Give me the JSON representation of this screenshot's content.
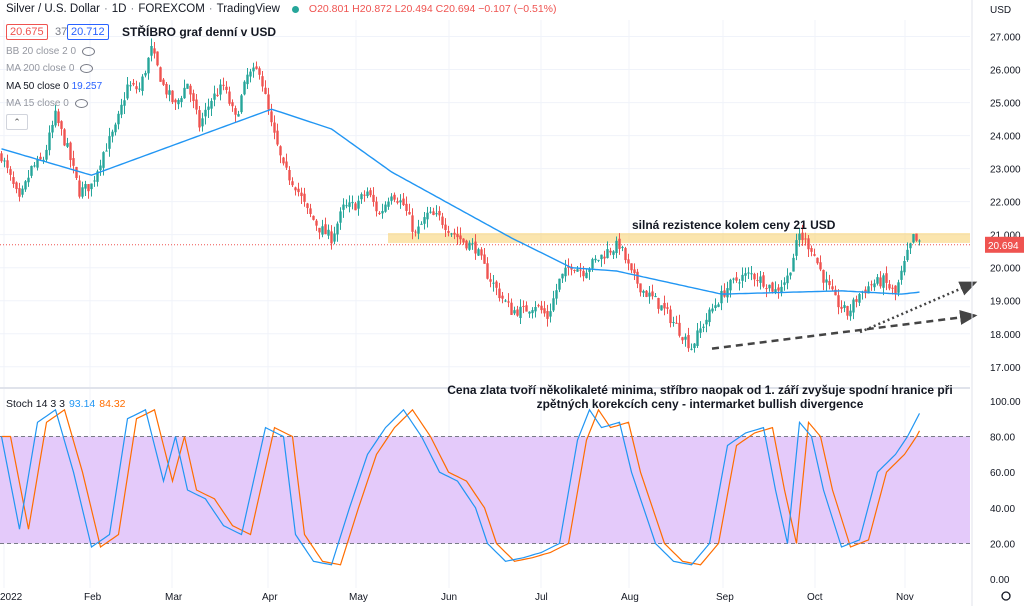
{
  "header": {
    "symbol": "Silver / U.S. Dollar",
    "interval": "1D",
    "exchange": "FOREXCOM",
    "provider": "TradingView",
    "ohlc": {
      "open": "O20.801",
      "high": "H20.872",
      "low": "L20.494",
      "close": "C20.694",
      "change": "−0.107 (−0.51%)"
    },
    "bid": "20.675",
    "spread": "37",
    "ask": "20.712",
    "currency": "USD"
  },
  "indicators": [
    {
      "label": "BB 20 close 2 0",
      "value": ""
    },
    {
      "label": "MA 200 close 0",
      "value": ""
    },
    {
      "label": "MA 50 close 0",
      "value": "19.257"
    },
    {
      "label": "MA 15 close 0",
      "value": ""
    }
  ],
  "annotations": {
    "title": "STŘÍBRO graf denní v USD",
    "resistance": "silná rezistence kolem ceny 21 USD",
    "comment": "Cena zlata tvoří několikaleté minima, stříbro naopak od 1. září zvyšuje spodní hranice při zpětných korekcích ceny - intermarket bullish divergence"
  },
  "stoch": {
    "label": "Stoch 14 3 3",
    "k": "93.14",
    "d": "84.32"
  },
  "colors": {
    "up": "#26a69a",
    "down": "#ef5350",
    "ma": "#2196f3",
    "band": "#f7cf6a",
    "stochFill": "#e1c4fa",
    "k": "#2196f3",
    "d": "#ff6d00"
  },
  "chart_data": {
    "type": "candlestick",
    "price_axis": {
      "ticks": [
        "27.000",
        "26.000",
        "25.000",
        "24.000",
        "23.000",
        "22.000",
        "21.000",
        "20.000",
        "19.000",
        "18.000",
        "17.000"
      ],
      "min": 16.6,
      "max": 27.5,
      "last_price": "20.694"
    },
    "stoch_axis": {
      "ticks": [
        "100.00",
        "80.00",
        "60.00",
        "40.00",
        "20.00",
        "0.00"
      ],
      "min": -5,
      "max": 105,
      "bands": [
        80,
        20
      ]
    },
    "time_axis": [
      "2022",
      "Feb",
      "Mar",
      "Apr",
      "May",
      "Jun",
      "Jul",
      "Aug",
      "Sep",
      "Oct",
      "Nov"
    ],
    "resistance_zone": [
      20.75,
      21.05
    ],
    "close_anchors": [
      [
        0,
        23.4
      ],
      [
        6,
        22.0
      ],
      [
        10,
        23.0
      ],
      [
        14,
        23.3
      ],
      [
        18,
        24.6
      ],
      [
        22,
        23.6
      ],
      [
        26,
        22.3
      ],
      [
        30,
        22.5
      ],
      [
        34,
        23.5
      ],
      [
        38,
        24.2
      ],
      [
        42,
        25.5
      ],
      [
        46,
        25.4
      ],
      [
        50,
        26.6
      ],
      [
        54,
        25.5
      ],
      [
        58,
        24.9
      ],
      [
        62,
        25.6
      ],
      [
        66,
        24.3
      ],
      [
        70,
        25.1
      ],
      [
        74,
        25.5
      ],
      [
        78,
        24.5
      ],
      [
        82,
        25.8
      ],
      [
        86,
        26.0
      ],
      [
        90,
        24.3
      ],
      [
        94,
        23.0
      ],
      [
        98,
        22.5
      ],
      [
        102,
        21.7
      ],
      [
        106,
        21.2
      ],
      [
        110,
        20.9
      ],
      [
        114,
        21.8
      ],
      [
        118,
        21.9
      ],
      [
        122,
        22.3
      ],
      [
        126,
        21.6
      ],
      [
        130,
        22.3
      ],
      [
        134,
        21.9
      ],
      [
        138,
        21.0
      ],
      [
        142,
        21.6
      ],
      [
        146,
        21.5
      ],
      [
        150,
        21.1
      ],
      [
        154,
        20.8
      ],
      [
        158,
        20.6
      ],
      [
        162,
        19.8
      ],
      [
        166,
        19.2
      ],
      [
        170,
        18.7
      ],
      [
        174,
        18.7
      ],
      [
        178,
        18.9
      ],
      [
        182,
        18.5
      ],
      [
        186,
        19.6
      ],
      [
        190,
        20.1
      ],
      [
        194,
        19.9
      ],
      [
        198,
        20.2
      ],
      [
        202,
        20.5
      ],
      [
        206,
        20.7
      ],
      [
        210,
        19.8
      ],
      [
        214,
        19.3
      ],
      [
        218,
        19.0
      ],
      [
        222,
        18.6
      ],
      [
        226,
        18.1
      ],
      [
        230,
        17.6
      ],
      [
        234,
        18.3
      ],
      [
        238,
        18.9
      ],
      [
        242,
        19.4
      ],
      [
        246,
        19.7
      ],
      [
        250,
        19.8
      ],
      [
        254,
        19.6
      ],
      [
        258,
        19.3
      ],
      [
        262,
        19.7
      ],
      [
        266,
        21.0
      ],
      [
        270,
        20.6
      ],
      [
        274,
        19.7
      ],
      [
        278,
        19.0
      ],
      [
        282,
        18.6
      ],
      [
        286,
        19.2
      ],
      [
        290,
        19.5
      ],
      [
        294,
        19.6
      ],
      [
        298,
        19.2
      ],
      [
        302,
        20.4
      ],
      [
        304,
        20.9
      ],
      [
        306,
        20.694
      ]
    ],
    "ma50_anchors": [
      [
        0,
        23.6
      ],
      [
        30,
        22.8
      ],
      [
        60,
        23.8
      ],
      [
        90,
        24.8
      ],
      [
        110,
        24.2
      ],
      [
        130,
        22.9
      ],
      [
        150,
        21.9
      ],
      [
        170,
        20.9
      ],
      [
        190,
        20.0
      ],
      [
        205,
        19.9
      ],
      [
        225,
        19.5
      ],
      [
        240,
        19.2
      ],
      [
        260,
        19.25
      ],
      [
        280,
        19.3
      ],
      [
        300,
        19.2
      ],
      [
        306,
        19.26
      ]
    ],
    "stoch_anchors": [
      [
        0,
        80
      ],
      [
        6,
        28
      ],
      [
        12,
        88
      ],
      [
        18,
        95
      ],
      [
        24,
        60
      ],
      [
        30,
        18
      ],
      [
        36,
        25
      ],
      [
        42,
        90
      ],
      [
        48,
        95
      ],
      [
        54,
        55
      ],
      [
        58,
        80
      ],
      [
        62,
        50
      ],
      [
        68,
        45
      ],
      [
        74,
        30
      ],
      [
        80,
        25
      ],
      [
        88,
        85
      ],
      [
        94,
        80
      ],
      [
        98,
        25
      ],
      [
        104,
        10
      ],
      [
        110,
        8
      ],
      [
        116,
        40
      ],
      [
        122,
        70
      ],
      [
        128,
        85
      ],
      [
        134,
        95
      ],
      [
        140,
        80
      ],
      [
        146,
        60
      ],
      [
        152,
        55
      ],
      [
        158,
        40
      ],
      [
        162,
        20
      ],
      [
        168,
        10
      ],
      [
        174,
        12
      ],
      [
        180,
        15
      ],
      [
        186,
        20
      ],
      [
        192,
        78
      ],
      [
        196,
        95
      ],
      [
        200,
        85
      ],
      [
        206,
        88
      ],
      [
        210,
        60
      ],
      [
        214,
        40
      ],
      [
        218,
        20
      ],
      [
        224,
        10
      ],
      [
        230,
        8
      ],
      [
        236,
        20
      ],
      [
        242,
        75
      ],
      [
        248,
        82
      ],
      [
        254,
        85
      ],
      [
        258,
        50
      ],
      [
        262,
        20
      ],
      [
        266,
        88
      ],
      [
        270,
        80
      ],
      [
        274,
        50
      ],
      [
        280,
        18
      ],
      [
        286,
        22
      ],
      [
        292,
        60
      ],
      [
        298,
        70
      ],
      [
        302,
        80
      ],
      [
        306,
        93
      ]
    ]
  }
}
